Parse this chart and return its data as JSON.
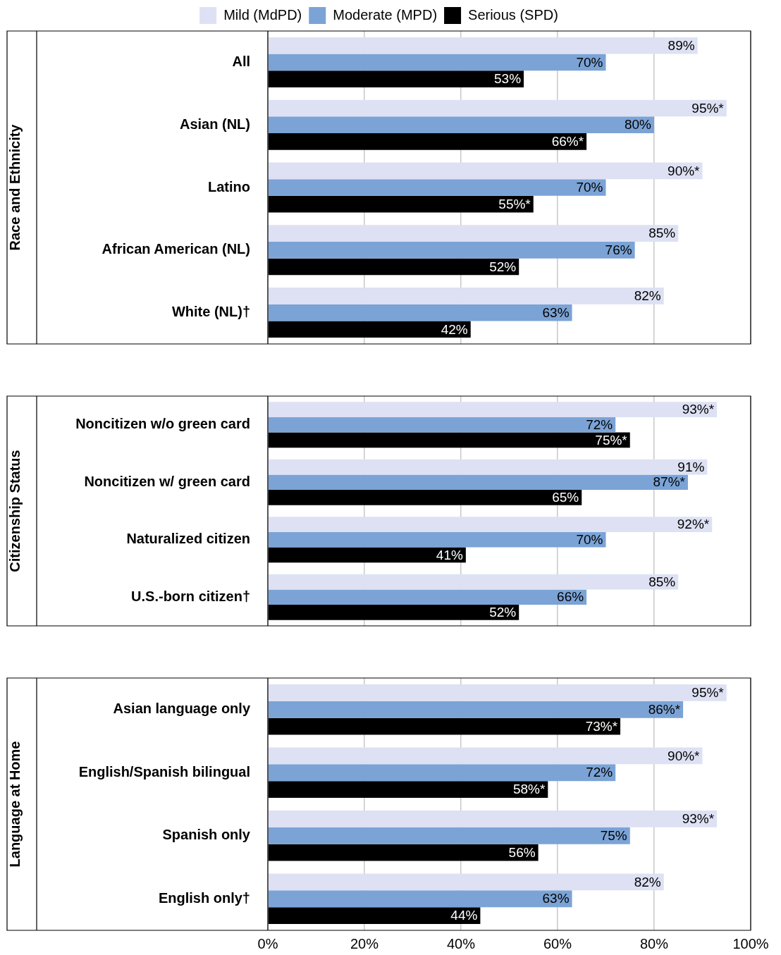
{
  "chart_data": [
    {
      "type": "bar",
      "orientation": "horizontal",
      "ylabel": "Race and Ethnicity",
      "categories": [
        "All",
        "Asian (NL)",
        "Latino",
        "African American (NL)",
        "White (NL)†"
      ],
      "series": [
        {
          "name": "Mild (MdPD)",
          "color": "#dde1f3",
          "values": [
            89,
            95,
            90,
            85,
            82
          ],
          "value_labels": [
            "89%",
            "95%*",
            "90%*",
            "85%",
            "82%"
          ]
        },
        {
          "name": "Moderate (MPD)",
          "color": "#7ba3d6",
          "values": [
            70,
            80,
            70,
            76,
            63
          ],
          "value_labels": [
            "70%",
            "80%",
            "70%",
            "76%",
            "63%"
          ]
        },
        {
          "name": "Serious (SPD)",
          "color": "#000000",
          "values": [
            53,
            66,
            55,
            52,
            42
          ],
          "value_labels": [
            "53%",
            "66%*",
            "55%*",
            "52%",
            "42%"
          ]
        }
      ],
      "xlim": [
        0,
        100
      ],
      "xticks": [
        {
          "value": 0,
          "label": null
        },
        {
          "value": 20,
          "label": null
        },
        {
          "value": 40,
          "label": null
        },
        {
          "value": 60,
          "label": null
        },
        {
          "value": 80,
          "label": null
        },
        {
          "value": 100,
          "label": null
        }
      ],
      "grid": "x",
      "legend": "top",
      "tick_labels": "y"
    },
    {
      "type": "bar",
      "orientation": "horizontal",
      "ylabel": "Citizenship Status",
      "categories": [
        "Noncitizen w/o green card",
        "Noncitizen w/ green card",
        "Naturalized citizen",
        "U.S.-born citizen†"
      ],
      "series": [
        {
          "color": "#dde1f3",
          "values": [
            93,
            91,
            92,
            85
          ],
          "value_labels": [
            "93%*",
            "91%",
            "92%*",
            "85%"
          ]
        },
        {
          "color": "#7ba3d6",
          "values": [
            72,
            87,
            70,
            66
          ],
          "value_labels": [
            "72%",
            "87%*",
            "70%",
            "66%"
          ]
        },
        {
          "color": "#000000",
          "values": [
            75,
            65,
            41,
            52
          ],
          "value_labels": [
            "75%*",
            "65%",
            "41%",
            "52%"
          ]
        }
      ],
      "xlim": [
        0,
        100
      ],
      "xticks": [
        {
          "value": 0,
          "label": null
        },
        {
          "value": 20,
          "label": null
        },
        {
          "value": 40,
          "label": null
        },
        {
          "value": 60,
          "label": null
        },
        {
          "value": 80,
          "label": null
        },
        {
          "value": 100,
          "label": null
        }
      ],
      "grid": "x",
      "tick_labels": "y"
    },
    {
      "type": "bar",
      "orientation": "horizontal",
      "ylabel": "Language at Home",
      "categories": [
        "Asian language only",
        "English/Spanish bilingual",
        "Spanish only",
        "English only†"
      ],
      "series": [
        {
          "color": "#dde1f3",
          "values": [
            95,
            90,
            93,
            82
          ],
          "value_labels": [
            "95%*",
            "90%*",
            "93%*",
            "82%"
          ]
        },
        {
          "color": "#7ba3d6",
          "values": [
            86,
            72,
            75,
            63
          ],
          "value_labels": [
            "86%*",
            "72%",
            "75%",
            "63%"
          ]
        },
        {
          "color": "#000000",
          "values": [
            73,
            58,
            56,
            44
          ],
          "value_labels": [
            "73%*",
            "58%*",
            "56%",
            "44%"
          ]
        }
      ],
      "xlim": [
        0,
        100
      ],
      "xticks": [
        {
          "value": 0,
          "label": "0%"
        },
        {
          "value": 20,
          "label": "20%"
        },
        {
          "value": 40,
          "label": "40%"
        },
        {
          "value": 60,
          "label": "60%"
        },
        {
          "value": 80,
          "label": "80%"
        },
        {
          "value": 100,
          "label": "100%"
        }
      ],
      "grid": "x"
    }
  ]
}
